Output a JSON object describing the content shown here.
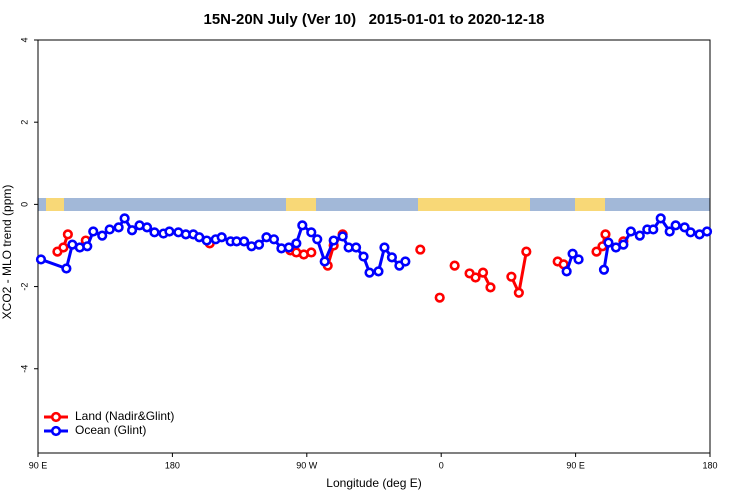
{
  "chart_data": {
    "type": "line",
    "title": "15N-20N July (Ver 10)   2015-01-01 to 2020-12-18",
    "xlabel": "Longitude (deg E)",
    "ylabel": "XCO2 - MLO trend (ppm)",
    "xlim": [
      90,
      540
    ],
    "ylim": [
      -6.05,
      4.0
    ],
    "xticks": [
      {
        "value": 90,
        "label": "90 E"
      },
      {
        "value": 180,
        "label": "180"
      },
      {
        "value": 270,
        "label": "90 W"
      },
      {
        "value": 360,
        "label": "0"
      },
      {
        "value": 450,
        "label": "90 E"
      },
      {
        "value": 540,
        "label": "180"
      }
    ],
    "yticks": [
      -4,
      -2,
      0,
      2,
      4
    ],
    "legend": "bottomleft",
    "series": [
      {
        "name": "Land (Nadir&Glint)",
        "color": "#ff0000",
        "x": [
          103,
          107,
          110,
          null,
          122,
          null,
          205,
          null,
          259,
          263,
          268,
          273,
          null,
          284,
          288,
          294,
          null,
          346,
          null,
          359,
          null,
          369,
          null,
          379,
          383,
          388,
          393,
          null,
          407,
          412,
          417,
          null,
          438,
          442,
          null,
          464,
          468,
          470,
          null,
          482
        ],
        "values": [
          -1.15,
          -1.05,
          -0.73,
          null,
          -0.88,
          null,
          -0.95,
          null,
          -1.12,
          -1.17,
          -1.22,
          -1.17,
          null,
          -1.49,
          -1.0,
          -0.73,
          null,
          -1.1,
          null,
          -2.27,
          null,
          -1.49,
          null,
          -1.68,
          -1.78,
          -1.66,
          -2.02,
          null,
          -1.76,
          -2.15,
          -1.15,
          null,
          -1.39,
          -1.46,
          null,
          -1.15,
          -1.02,
          -0.73,
          null,
          -0.9
        ]
      },
      {
        "name": "Ocean (Glint)",
        "color": "#0000ff",
        "x": [
          92,
          109,
          113,
          118,
          123,
          127,
          133,
          138,
          144,
          148,
          153,
          158,
          163,
          168,
          174,
          178,
          184,
          189,
          194,
          198,
          203,
          209,
          213,
          219,
          223,
          228,
          233,
          238,
          243,
          248,
          253,
          258,
          263,
          267,
          273,
          277,
          282,
          288,
          294,
          298,
          303,
          308,
          312,
          318,
          322,
          327,
          332,
          336,
          null,
          444,
          448,
          452,
          null,
          469,
          472,
          477,
          482,
          487,
          493,
          498,
          502,
          507,
          513,
          517,
          523,
          527,
          533,
          538
        ],
        "values": [
          -1.34,
          -1.56,
          -0.98,
          -1.05,
          -1.02,
          -0.66,
          -0.76,
          -0.61,
          -0.56,
          -0.34,
          -0.63,
          -0.51,
          -0.56,
          -0.68,
          -0.71,
          -0.66,
          -0.68,
          -0.73,
          -0.73,
          -0.8,
          -0.88,
          -0.85,
          -0.8,
          -0.9,
          -0.9,
          -0.9,
          -1.02,
          -0.98,
          -0.8,
          -0.85,
          -1.07,
          -1.05,
          -0.95,
          -0.51,
          -0.68,
          -0.85,
          -1.39,
          -0.88,
          -0.78,
          -1.05,
          -1.05,
          -1.27,
          -1.66,
          -1.63,
          -1.05,
          -1.29,
          -1.49,
          -1.39,
          null,
          -1.63,
          -1.2,
          -1.34,
          null,
          -1.59,
          -0.93,
          -1.05,
          -0.98,
          -0.66,
          -0.76,
          -0.61,
          -0.61,
          -0.34,
          -0.66,
          -0.51,
          -0.56,
          -0.68,
          -0.73,
          -0.66
        ]
      }
    ]
  }
}
